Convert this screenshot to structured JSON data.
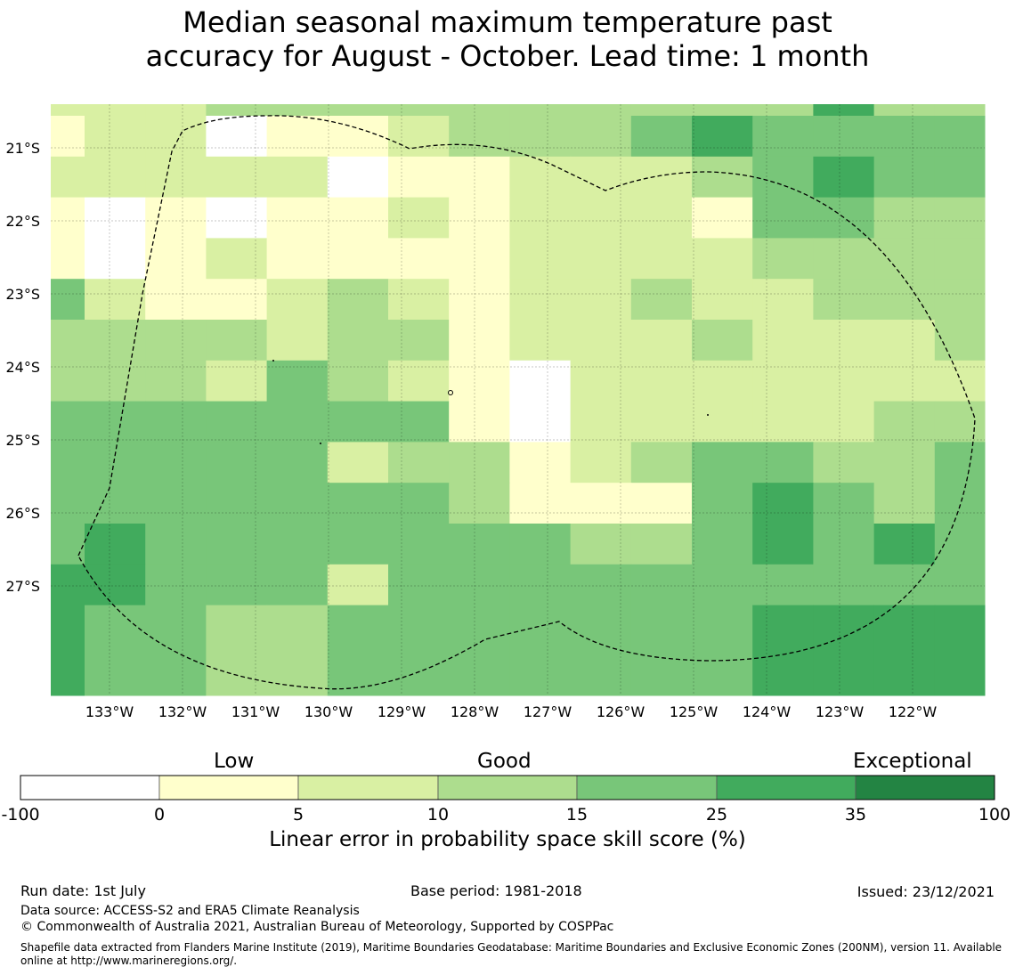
{
  "title": {
    "line1": "Median seasonal maximum temperature past",
    "line2": "accuracy for August - October. Lead time: 1 month"
  },
  "map": {
    "lat_labels": [
      "21°S",
      "22°S",
      "23°S",
      "24°S",
      "25°S",
      "26°S",
      "27°S"
    ],
    "lon_labels": [
      "133°W",
      "132°W",
      "131°W",
      "130°W",
      "129°W",
      "128°W",
      "127°W",
      "126°W",
      "125°W",
      "124°W",
      "123°W",
      "122°W"
    ],
    "grid": [
      [
        2,
        2,
        2,
        3,
        3,
        3,
        3,
        3,
        3,
        3,
        3,
        3,
        3,
        5,
        3,
        3,
        3
      ],
      [
        1,
        2,
        2,
        0,
        1,
        1,
        2,
        3,
        3,
        3,
        4,
        5,
        4,
        4,
        4,
        4,
        4
      ],
      [
        2,
        2,
        2,
        2,
        2,
        0,
        1,
        1,
        2,
        2,
        2,
        3,
        4,
        5,
        4,
        4,
        4
      ],
      [
        1,
        0,
        1,
        0,
        1,
        1,
        2,
        1,
        2,
        2,
        2,
        1,
        4,
        4,
        3,
        3,
        3
      ],
      [
        1,
        0,
        1,
        2,
        1,
        1,
        1,
        1,
        2,
        2,
        2,
        2,
        3,
        3,
        3,
        3,
        2
      ],
      [
        4,
        2,
        1,
        1,
        2,
        3,
        2,
        1,
        2,
        2,
        3,
        2,
        2,
        3,
        3,
        3,
        2
      ],
      [
        3,
        3,
        3,
        3,
        2,
        3,
        3,
        1,
        2,
        2,
        2,
        3,
        2,
        2,
        2,
        3,
        3
      ],
      [
        3,
        3,
        3,
        2,
        4,
        3,
        2,
        1,
        0,
        2,
        2,
        2,
        2,
        2,
        2,
        2,
        3
      ],
      [
        4,
        4,
        4,
        4,
        4,
        4,
        4,
        1,
        0,
        2,
        2,
        2,
        2,
        2,
        3,
        3,
        4
      ],
      [
        4,
        4,
        4,
        4,
        4,
        2,
        3,
        3,
        1,
        2,
        3,
        4,
        4,
        3,
        3,
        4,
        4
      ],
      [
        4,
        4,
        4,
        4,
        4,
        4,
        4,
        3,
        1,
        1,
        1,
        4,
        5,
        4,
        3,
        4,
        4
      ],
      [
        4,
        5,
        4,
        4,
        4,
        4,
        4,
        4,
        4,
        3,
        3,
        4,
        5,
        4,
        5,
        4,
        5
      ],
      [
        5,
        5,
        4,
        4,
        4,
        2,
        4,
        4,
        4,
        4,
        4,
        4,
        4,
        4,
        4,
        4,
        5
      ],
      [
        5,
        4,
        4,
        3,
        3,
        4,
        4,
        4,
        4,
        4,
        4,
        4,
        5,
        5,
        5,
        5,
        5
      ]
    ]
  },
  "colorbar": {
    "categories": [
      {
        "from": "-100",
        "to": "0",
        "color": "#ffffff"
      },
      {
        "from": "0",
        "to": "5",
        "color": "#ffffcc"
      },
      {
        "from": "5",
        "to": "10",
        "color": "#d9f0a3"
      },
      {
        "from": "10",
        "to": "15",
        "color": "#addd8e"
      },
      {
        "from": "15",
        "to": "25",
        "color": "#78c679"
      },
      {
        "from": "25",
        "to": "35",
        "color": "#41ab5d"
      },
      {
        "from": "35",
        "to": "100",
        "color": "#238443"
      }
    ],
    "ticks": [
      "-100",
      "0",
      "5",
      "10",
      "15",
      "25",
      "35",
      "100"
    ],
    "head_low": "Low",
    "head_good": "Good",
    "head_exceptional": "Exceptional",
    "label": "Linear error in probability space skill score (%)"
  },
  "footer": {
    "run_date": "Run date: 1st July",
    "base_period": "Base period: 1981-2018",
    "issued": "Issued: 23/12/2021",
    "data_source": "Data source: ACCESS-S2 and ERA5 Climate Reanalysis",
    "copyright": "© Commonwealth of Australia 2021, Australian Bureau of Meteorology, Supported by COSPPac",
    "shapefile": "Shapefile data extracted from Flanders Marine Institute (2019), Maritime Boundaries Geodatabase: Maritime Boundaries and Exclusive Economic Zones (200NM), version 11. Available online at http://www.marineregions.org/."
  }
}
